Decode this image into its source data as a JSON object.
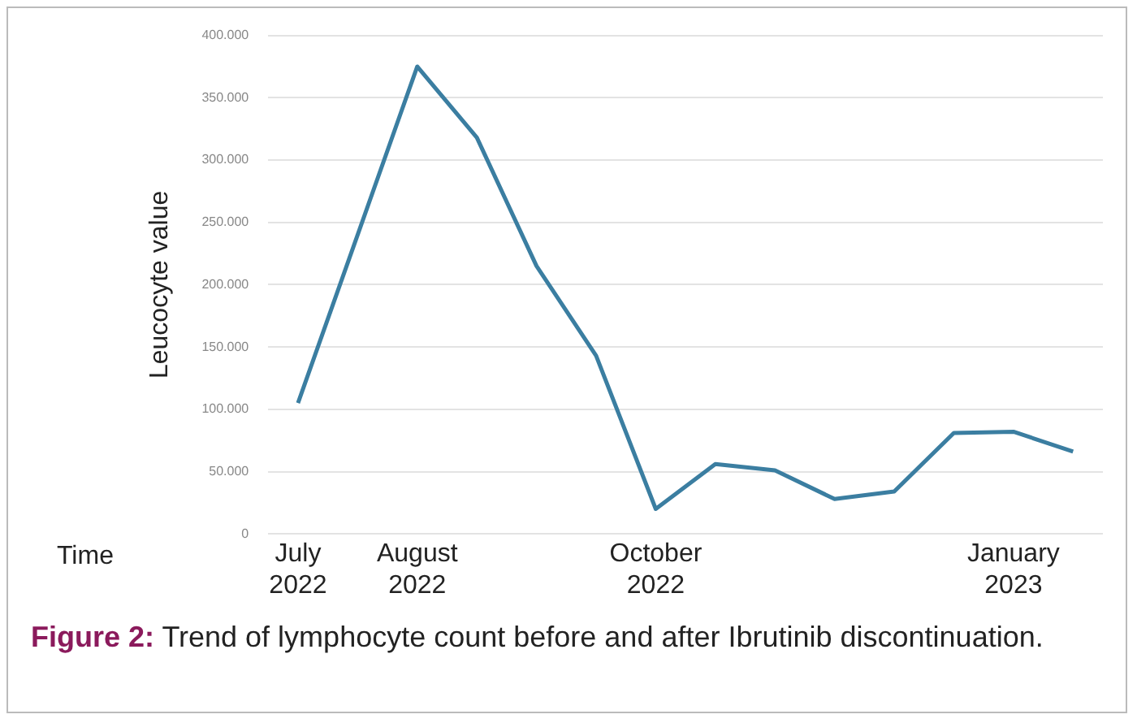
{
  "chart_data": {
    "type": "line",
    "xlabel": "Time",
    "ylabel": "Leucocyte value",
    "categories": [
      "July 2022",
      null,
      "August 2022",
      null,
      null,
      null,
      "October 2022",
      null,
      null,
      null,
      null,
      null,
      "January 2023",
      null
    ],
    "series": [
      {
        "color": "#3b7ea1",
        "values": [
          105000,
          240000,
          375000,
          318000,
          215000,
          143000,
          20000,
          56000,
          51000,
          28000,
          34000,
          81000,
          82000,
          66000
        ]
      }
    ],
    "ylim": [
      0,
      400000
    ],
    "yticks": [
      0,
      {
        "value": 50000,
        "label": "50.000"
      },
      {
        "value": 100000,
        "label": "100.000"
      },
      {
        "value": 150000,
        "label": "150.000"
      },
      {
        "value": 200000,
        "label": "200.000"
      },
      {
        "value": 250000,
        "label": "250.000"
      },
      {
        "value": 300000,
        "label": "300.000"
      },
      {
        "value": 350000,
        "label": "350.000"
      },
      {
        "value": 400000,
        "label": "400.000"
      }
    ],
    "grid": "y",
    "legend": false,
    "marker": "none",
    "line_style": "solid",
    "annotations": [
      "Figure 2: Trend of lymphocyte count before and after Ibrutinib discontinuation."
    ]
  }
}
